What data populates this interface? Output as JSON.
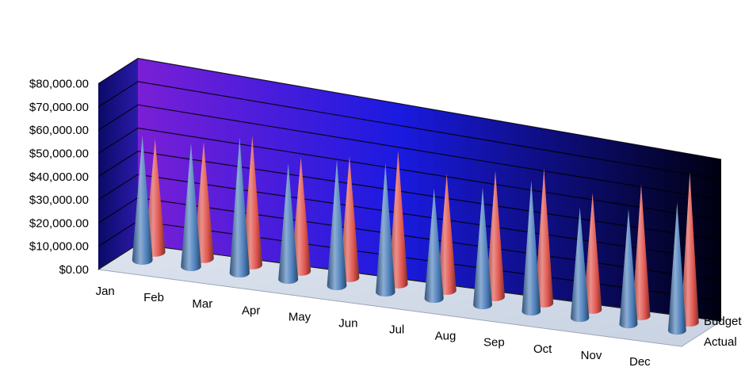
{
  "chart_data": {
    "type": "bar",
    "shape": "cone",
    "projection": "3d",
    "categories": [
      "Jan",
      "Feb",
      "Mar",
      "Apr",
      "May",
      "Jun",
      "Jul",
      "Aug",
      "Sep",
      "Oct",
      "Nov",
      "Dec"
    ],
    "series": [
      {
        "name": "Actual",
        "color": "#4f81bd",
        "values": [
          54000,
          54000,
          60000,
          52000,
          57000,
          59000,
          51000,
          55000,
          62000,
          53000,
          56000,
          63000
        ]
      },
      {
        "name": "Budget",
        "color": "#e0564f",
        "values": [
          49000,
          51000,
          57000,
          51000,
          55000,
          61000,
          54000,
          59000,
          64000,
          56000,
          64000,
          74000
        ]
      }
    ],
    "y_ticks": [
      "$0.00",
      "$10,000.00",
      "$20,000.00",
      "$30,000.00",
      "$40,000.00",
      "$50,000.00",
      "$60,000.00",
      "$70,000.00",
      "$80,000.00"
    ],
    "ylim": [
      0,
      80000
    ],
    "depth_labels": [
      "Actual",
      "Budget"
    ],
    "grid": true,
    "background_colors": [
      "#7a1fd6",
      "#1a1ae0",
      "#000010"
    ],
    "floor_color": "#c8d2e2"
  }
}
